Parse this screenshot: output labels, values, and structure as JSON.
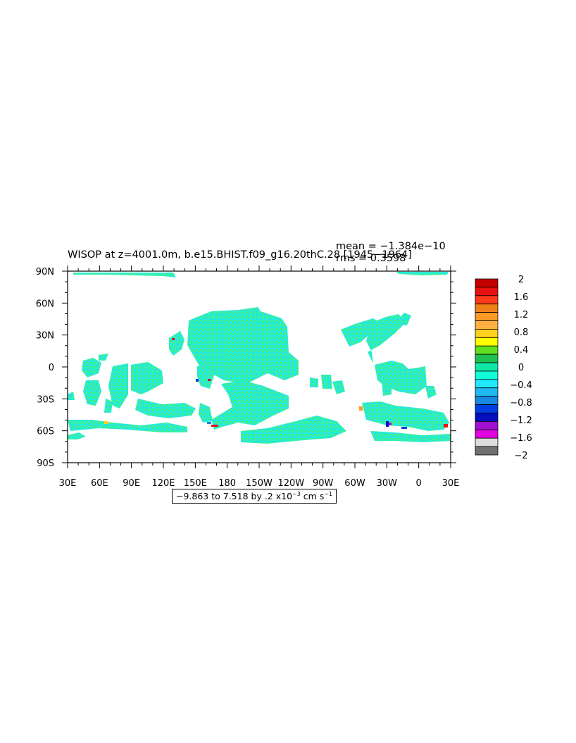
{
  "chart_data": {
    "type": "heatmap",
    "title": "WISOP at z=4001.0m, b.e15.BHIST.f09_g16.20thC.28 [1945−1964]",
    "stats": {
      "mean_text": "mean = −1.384e−10",
      "rms_text": "rms = 0.3598",
      "mean": -1.384e-10,
      "rms": 0.3598
    },
    "x_ticks": [
      "30E",
      "60E",
      "90E",
      "120E",
      "150E",
      "180",
      "150W",
      "120W",
      "90W",
      "60W",
      "30W",
      "0",
      "30E"
    ],
    "y_ticks": [
      "90N",
      "60N",
      "30N",
      "0",
      "30S",
      "60S",
      "90S"
    ],
    "xlim_deg_east": [
      30,
      390
    ],
    "ylim_deg_north": [
      -90,
      90
    ],
    "grid": false,
    "legend_position": "right",
    "colorbar": {
      "levels": [
        "2",
        "1.6",
        "1.2",
        "0.8",
        "0.4",
        "0",
        "−0.4",
        "−0.8",
        "−1.2",
        "−1.6",
        "−2"
      ],
      "colors": [
        "#c40000",
        "#e81010",
        "#ff3a1a",
        "#f08018",
        "#ff9a28",
        "#ffb040",
        "#ffd020",
        "#ffff00",
        "#60e020",
        "#20c050",
        "#10e8a8",
        "#10ffd8",
        "#20e8ff",
        "#20b8f0",
        "#1888e0",
        "#0040e0",
        "#0010c0",
        "#a010d0",
        "#e000e0",
        "#dcdcdc",
        "#707070"
      ]
    },
    "range_info": {
      "prefix": "−9.863 to 7.518 by .2 x10",
      "exponent": "−3",
      "units": " cm s",
      "units_exponent": "−1"
    },
    "dominant_value_range": [
      -0.4,
      0.0
    ]
  }
}
